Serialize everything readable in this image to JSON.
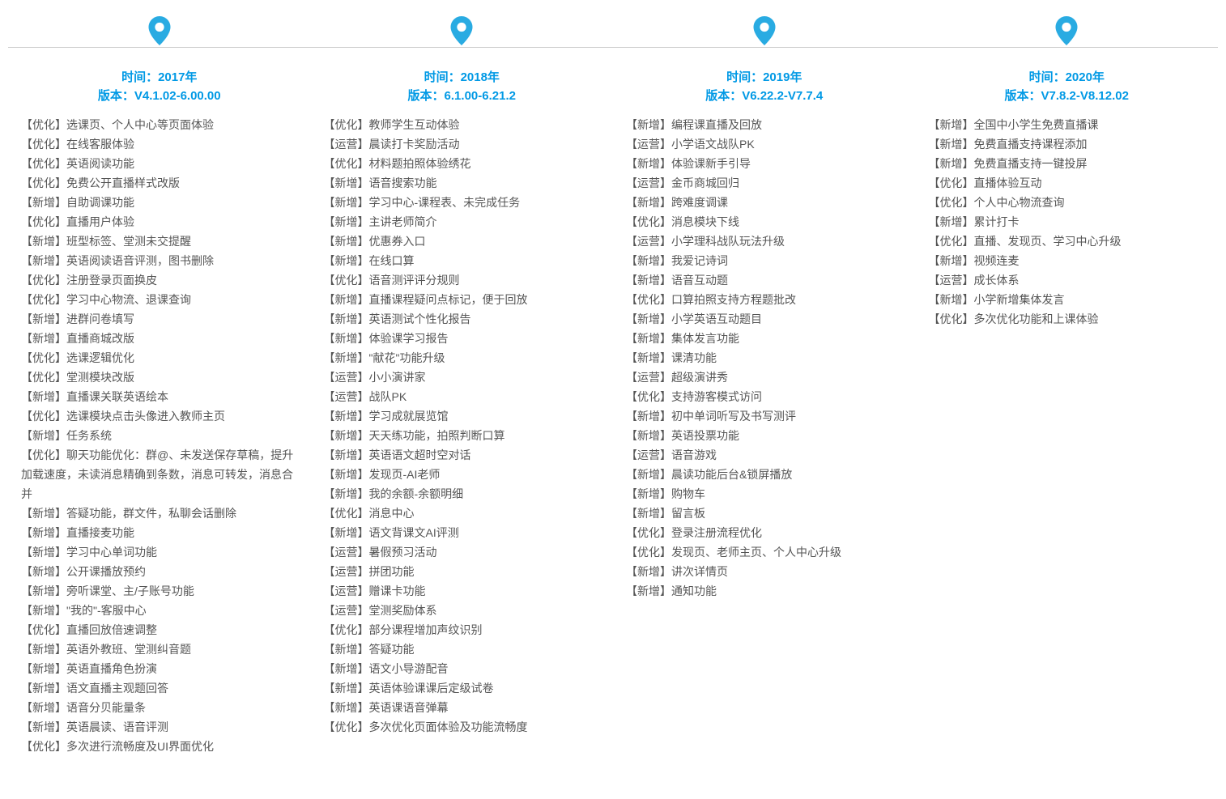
{
  "accent_color": "#0099e5",
  "text_color": "#555555",
  "line_color": "#cccccc",
  "pin_fill": "#29abe2",
  "time_label_prefix": "时间：",
  "version_label_prefix": "版本：",
  "columns": [
    {
      "year": "2017年",
      "version": "V4.1.02-6.00.00",
      "items": [
        {
          "tag": "优化",
          "text": "选课页、个人中心等页面体验"
        },
        {
          "tag": "优化",
          "text": "在线客服体验"
        },
        {
          "tag": "优化",
          "text": "英语阅读功能"
        },
        {
          "tag": "优化",
          "text": "免费公开直播样式改版"
        },
        {
          "tag": "新增",
          "text": "自助调课功能"
        },
        {
          "tag": "优化",
          "text": "直播用户体验"
        },
        {
          "tag": "新增",
          "text": "班型标签、堂测未交提醒"
        },
        {
          "tag": "新增",
          "text": "英语阅读语音评测，图书删除"
        },
        {
          "tag": "优化",
          "text": "注册登录页面换皮"
        },
        {
          "tag": "优化",
          "text": "学习中心物流、退课查询"
        },
        {
          "tag": "新增",
          "text": "进群问卷填写"
        },
        {
          "tag": "新增",
          "text": "直播商城改版"
        },
        {
          "tag": "优化",
          "text": "选课逻辑优化"
        },
        {
          "tag": "优化",
          "text": "堂测模块改版"
        },
        {
          "tag": "新增",
          "text": "直播课关联英语绘本"
        },
        {
          "tag": "优化",
          "text": "选课模块点击头像进入教师主页"
        },
        {
          "tag": "新增",
          "text": "任务系统"
        },
        {
          "tag": "优化",
          "text": "聊天功能优化：群@、未发送保存草稿，提升加载速度，未读消息精确到条数，消息可转发，消息合并"
        },
        {
          "tag": "新增",
          "text": "答疑功能，群文件，私聊会话删除"
        },
        {
          "tag": "新增",
          "text": "直播接麦功能"
        },
        {
          "tag": "新增",
          "text": "学习中心单词功能"
        },
        {
          "tag": "新增",
          "text": "公开课播放预约"
        },
        {
          "tag": "新增",
          "text": "旁听课堂、主/子账号功能"
        },
        {
          "tag": "新增",
          "text": "\"我的\"-客服中心"
        },
        {
          "tag": "优化",
          "text": "直播回放倍速调整"
        },
        {
          "tag": "新增",
          "text": "英语外教班、堂测纠音题"
        },
        {
          "tag": "新增",
          "text": "英语直播角色扮演"
        },
        {
          "tag": "新增",
          "text": "语文直播主观题回答"
        },
        {
          "tag": "新增",
          "text": "语音分贝能量条"
        },
        {
          "tag": "新增",
          "text": "英语晨读、语音评测"
        },
        {
          "tag": "优化",
          "text": "多次进行流畅度及UI界面优化"
        }
      ]
    },
    {
      "year": "2018年",
      "version": "6.1.00-6.21.2",
      "items": [
        {
          "tag": "优化",
          "text": "教师学生互动体验"
        },
        {
          "tag": "运营",
          "text": "晨读打卡奖励活动"
        },
        {
          "tag": "优化",
          "text": "材料题拍照体验绣花"
        },
        {
          "tag": "新增",
          "text": "语音搜索功能"
        },
        {
          "tag": "新增",
          "text": "学习中心-课程表、未完成任务"
        },
        {
          "tag": "新增",
          "text": "主讲老师简介"
        },
        {
          "tag": "新增",
          "text": "优惠券入口"
        },
        {
          "tag": "新增",
          "text": "在线口算"
        },
        {
          "tag": "优化",
          "text": "语音测评评分规则"
        },
        {
          "tag": "新增",
          "text": "直播课程疑问点标记，便于回放"
        },
        {
          "tag": "新增",
          "text": "英语测试个性化报告"
        },
        {
          "tag": "新增",
          "text": "体验课学习报告"
        },
        {
          "tag": "新增",
          "text": "\"献花\"功能升级"
        },
        {
          "tag": "运营",
          "text": "小小演讲家"
        },
        {
          "tag": "运营",
          "text": "战队PK"
        },
        {
          "tag": "新增",
          "text": "学习成就展览馆"
        },
        {
          "tag": "新增",
          "text": "天天练功能，拍照判断口算"
        },
        {
          "tag": "新增",
          "text": "英语语文超时空对话"
        },
        {
          "tag": "新增",
          "text": "发现页-AI老师"
        },
        {
          "tag": "新增",
          "text": "我的余额-余额明细"
        },
        {
          "tag": "优化",
          "text": "消息中心"
        },
        {
          "tag": "新增",
          "text": "语文背课文AI评测"
        },
        {
          "tag": "运营",
          "text": "暑假预习活动"
        },
        {
          "tag": "运营",
          "text": "拼团功能"
        },
        {
          "tag": "运营",
          "text": "赠课卡功能"
        },
        {
          "tag": "运营",
          "text": "堂测奖励体系"
        },
        {
          "tag": "优化",
          "text": "部分课程增加声纹识别"
        },
        {
          "tag": "新增",
          "text": "答疑功能"
        },
        {
          "tag": "新增",
          "text": "语文小导游配音"
        },
        {
          "tag": "新增",
          "text": "英语体验课课后定级试卷"
        },
        {
          "tag": "新增",
          "text": "英语课语音弹幕"
        },
        {
          "tag": "优化",
          "text": "多次优化页面体验及功能流畅度"
        }
      ]
    },
    {
      "year": "2019年",
      "version": "V6.22.2-V7.7.4",
      "items": [
        {
          "tag": "新增",
          "text": "编程课直播及回放"
        },
        {
          "tag": "运营",
          "text": "小学语文战队PK"
        },
        {
          "tag": "新增",
          "text": "体验课新手引导"
        },
        {
          "tag": "运营",
          "text": "金币商城回归"
        },
        {
          "tag": "新增",
          "text": "跨难度调课"
        },
        {
          "tag": "优化",
          "text": "消息模块下线"
        },
        {
          "tag": "运营",
          "text": "小学理科战队玩法升级"
        },
        {
          "tag": "新增",
          "text": "我爱记诗词"
        },
        {
          "tag": "新增",
          "text": "语音互动题"
        },
        {
          "tag": "优化",
          "text": "口算拍照支持方程题批改"
        },
        {
          "tag": "新增",
          "text": "小学英语互动题目"
        },
        {
          "tag": "新增",
          "text": "集体发言功能"
        },
        {
          "tag": "新增",
          "text": "课清功能"
        },
        {
          "tag": "运营",
          "text": "超级演讲秀"
        },
        {
          "tag": "优化",
          "text": "支持游客模式访问"
        },
        {
          "tag": "新增",
          "text": "初中单词听写及书写测评"
        },
        {
          "tag": "新增",
          "text": "英语投票功能"
        },
        {
          "tag": "运营",
          "text": "语音游戏"
        },
        {
          "tag": "新增",
          "text": "晨读功能后台&锁屏播放"
        },
        {
          "tag": "新增",
          "text": "购物车"
        },
        {
          "tag": "新增",
          "text": "留言板"
        },
        {
          "tag": "优化",
          "text": "登录注册流程优化"
        },
        {
          "tag": "优化",
          "text": "发现页、老师主页、个人中心升级"
        },
        {
          "tag": "新增",
          "text": "讲次详情页"
        },
        {
          "tag": "新增",
          "text": "通知功能"
        }
      ]
    },
    {
      "year": "2020年",
      "version": "V7.8.2-V8.12.02",
      "items": [
        {
          "tag": "新增",
          "text": "全国中小学生免费直播课"
        },
        {
          "tag": "新增",
          "text": "免费直播支持课程添加"
        },
        {
          "tag": "新增",
          "text": "免费直播支持一键投屏"
        },
        {
          "tag": "优化",
          "text": "直播体验互动"
        },
        {
          "tag": "优化",
          "text": "个人中心物流查询"
        },
        {
          "tag": "新增",
          "text": "累计打卡"
        },
        {
          "tag": "优化",
          "text": "直播、发现页、学习中心升级"
        },
        {
          "tag": "新增",
          "text": "视频连麦"
        },
        {
          "tag": "运营",
          "text": "成长体系"
        },
        {
          "tag": "新增",
          "text": "小学新增集体发言"
        },
        {
          "tag": "优化",
          "text": "多次优化功能和上课体验"
        }
      ]
    }
  ]
}
